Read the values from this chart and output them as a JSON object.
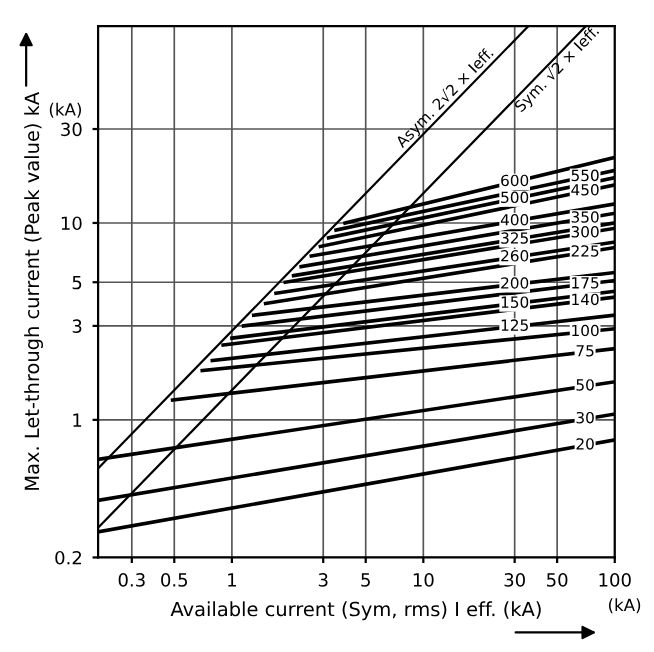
{
  "chart_data": {
    "type": "line",
    "xlabel": "Available current (Sym, rms) I eff. (kA)",
    "ylabel": "Max. Let-through current (Peak value) kA",
    "log": "xy",
    "grid": true,
    "xlim": [
      0.2,
      100
    ],
    "ylim": [
      0.2,
      100
    ],
    "xticks": [
      0.3,
      0.5,
      1,
      3,
      5,
      10,
      30,
      50,
      100
    ],
    "yticks": [
      0.2,
      1,
      3,
      5,
      10,
      30
    ],
    "annotations": [
      "(kA)",
      "(kA)"
    ],
    "series": [
      {
        "name": "Asym. 2√2 × Ieff.",
        "color": "#000000",
        "x": [
          0.2,
          35.4
        ],
        "values": [
          0.566,
          100
        ]
      },
      {
        "name": "Sym. √2 × Ieff.",
        "color": "#000000",
        "x": [
          0.2,
          70.7
        ],
        "values": [
          0.283,
          100
        ]
      },
      {
        "name": "600",
        "color": "#000000",
        "x": [
          3.9,
          100
        ],
        "values": [
          10,
          21.5
        ]
      },
      {
        "name": "550",
        "color": "#000000",
        "x": [
          3.5,
          100
        ],
        "values": [
          9.2,
          18.5
        ]
      },
      {
        "name": "500",
        "color": "#000000",
        "x": [
          3.2,
          100
        ],
        "values": [
          8.4,
          17
        ]
      },
      {
        "name": "450",
        "color": "#000000",
        "x": [
          2.9,
          100
        ],
        "values": [
          7.6,
          15.6
        ]
      },
      {
        "name": "400",
        "color": "#000000",
        "x": [
          2.6,
          100
        ],
        "values": [
          6.8,
          12.5
        ]
      },
      {
        "name": "350",
        "color": "#000000",
        "x": [
          2.3,
          100
        ],
        "values": [
          6,
          11.2
        ]
      },
      {
        "name": "325",
        "color": "#000000",
        "x": [
          2.1,
          100
        ],
        "values": [
          5.4,
          10
        ]
      },
      {
        "name": "300",
        "color": "#000000",
        "x": [
          1.9,
          100
        ],
        "values": [
          5,
          9.4
        ]
      },
      {
        "name": "260",
        "color": "#000000",
        "x": [
          1.7,
          100
        ],
        "values": [
          4.4,
          8
        ]
      },
      {
        "name": "225",
        "color": "#000000",
        "x": [
          1.5,
          100
        ],
        "values": [
          3.9,
          7.5
        ]
      },
      {
        "name": "200",
        "color": "#000000",
        "x": [
          1.3,
          100
        ],
        "values": [
          3.4,
          5.6
        ]
      },
      {
        "name": "175",
        "color": "#000000",
        "x": [
          1.15,
          100
        ],
        "values": [
          3,
          5.1
        ]
      },
      {
        "name": "150",
        "color": "#000000",
        "x": [
          1,
          100
        ],
        "values": [
          2.6,
          4.5
        ]
      },
      {
        "name": "140",
        "color": "#000000",
        "x": [
          0.9,
          100
        ],
        "values": [
          2.4,
          4.2
        ]
      },
      {
        "name": "125",
        "color": "#000000",
        "x": [
          0.79,
          100
        ],
        "values": [
          2,
          3.4
        ]
      },
      {
        "name": "100",
        "color": "#000000",
        "x": [
          0.7,
          100
        ],
        "values": [
          1.78,
          2.9
        ]
      },
      {
        "name": "75",
        "color": "#000000",
        "x": [
          0.49,
          100
        ],
        "values": [
          1.26,
          2.3
        ]
      },
      {
        "name": "50",
        "color": "#000000",
        "x": [
          0.2,
          100
        ],
        "values": [
          0.63,
          1.56
        ]
      },
      {
        "name": "30",
        "color": "#000000",
        "x": [
          0.2,
          100
        ],
        "values": [
          0.39,
          1.07
        ]
      },
      {
        "name": "20",
        "color": "#000000",
        "x": [
          0.2,
          100
        ],
        "values": [
          0.27,
          0.79
        ]
      }
    ]
  }
}
